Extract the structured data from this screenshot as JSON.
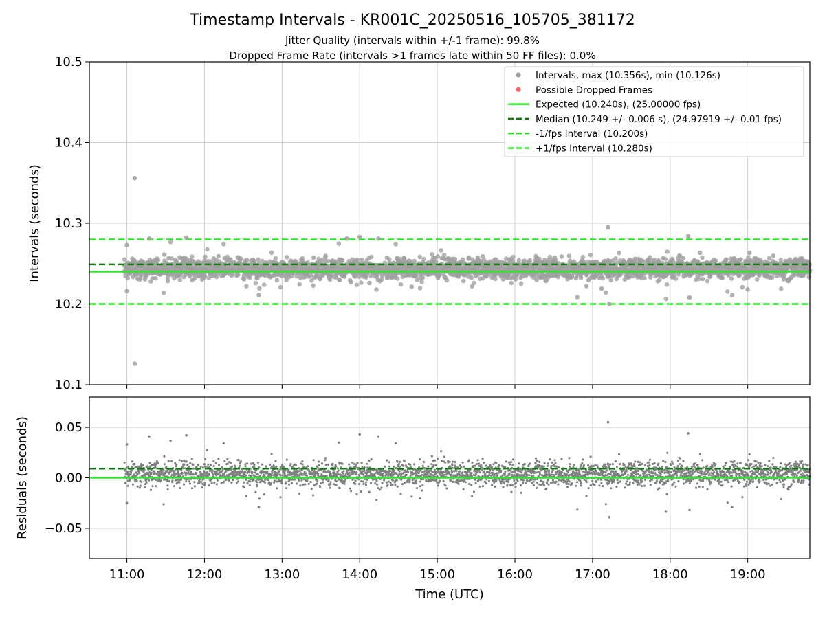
{
  "figure": {
    "title": "Timestamp Intervals - KR001C_20250516_105705_381172",
    "subtitle_line1": "Jitter Quality (intervals within +/-1 frame): 99.8%",
    "subtitle_line2": "Dropped Frame Rate (intervals >1 frames late within 50 FF files): 0.0%"
  },
  "colors": {
    "points": "#808080",
    "dropped": "#ff4444",
    "expected": "#22ee22",
    "median": "#117711",
    "bounds": "#22ee22",
    "grid": "#cccccc"
  },
  "chart_data": [
    {
      "type": "scatter",
      "ylabel": "Intervals (seconds)",
      "xlabel": "",
      "xlim": [
        "10:31",
        "19:48"
      ],
      "ylim": [
        10.1,
        10.5
      ],
      "yticks": [
        10.1,
        10.2,
        10.3,
        10.4,
        10.5
      ],
      "ytick_labels": [
        "10.1",
        "10.2",
        "10.3",
        "10.4",
        "10.5"
      ],
      "grid": true,
      "legend_position": "top-right",
      "legend": [
        {
          "label": "Intervals, max (10.356s), min (10.126s)",
          "kind": "marker",
          "color": "#a0a0a0"
        },
        {
          "label": "Possible Dropped Frames",
          "kind": "marker",
          "color": "#ff6060"
        },
        {
          "label": "Expected (10.240s), (25.00000 fps)",
          "kind": "solid",
          "color": "#22ee22"
        },
        {
          "label": "Median (10.249 +/- 0.006 s), (24.97919 +/- 0.01 fps)",
          "kind": "dashed",
          "color": "#117711"
        },
        {
          "label": "-1/fps Interval (10.200s)",
          "kind": "dashed",
          "color": "#22ee22"
        },
        {
          "label": "+1/fps Interval (10.280s)",
          "kind": "dashed",
          "color": "#22ee22"
        }
      ],
      "reference_lines": {
        "expected": 10.24,
        "median": 10.249,
        "lower": 10.2,
        "upper": 10.28
      },
      "series": [
        {
          "name": "Intervals, max (10.356s), min (10.126s)",
          "x_range": [
            "10:58",
            "19:48"
          ],
          "approx_count": 3100,
          "baseline": 10.244,
          "spread": 0.006,
          "max": 10.356,
          "min": 10.126
        },
        {
          "name": "Possible Dropped Frames",
          "x": [],
          "y": []
        }
      ],
      "notable_points": [
        {
          "x": "11:00",
          "y": 10.273
        },
        {
          "x": "11:00",
          "y": 10.216
        },
        {
          "x": "11:06",
          "y": 10.356
        },
        {
          "x": "11:06",
          "y": 10.126
        },
        {
          "x": "11:46",
          "y": 10.282
        },
        {
          "x": "12:42",
          "y": 10.211
        },
        {
          "x": "13:50",
          "y": 10.281
        },
        {
          "x": "14:00",
          "y": 10.283
        },
        {
          "x": "17:07",
          "y": 10.219
        },
        {
          "x": "17:12",
          "y": 10.295
        },
        {
          "x": "17:13",
          "y": 10.2
        },
        {
          "x": "18:14",
          "y": 10.284
        },
        {
          "x": "18:15",
          "y": 10.208
        },
        {
          "x": "19:00",
          "y": 10.218
        }
      ]
    },
    {
      "type": "scatter",
      "ylabel": "Residuals (seconds)",
      "xlabel": "Time (UTC)",
      "xlim": [
        "10:31",
        "19:48"
      ],
      "ylim": [
        -0.08,
        0.08
      ],
      "yticks": [
        -0.05,
        0.0,
        0.05
      ],
      "ytick_labels": [
        "−0.05",
        "0.00",
        "0.05"
      ],
      "xticks": [
        "11:00",
        "12:00",
        "13:00",
        "14:00",
        "15:00",
        "16:00",
        "17:00",
        "18:00",
        "19:00"
      ],
      "grid": true,
      "reference_lines": {
        "expected": 0.0,
        "median": 0.009
      },
      "series": [
        {
          "name": "Residuals",
          "x_range": [
            "10:58",
            "19:48"
          ],
          "approx_count": 3100,
          "baseline": 0.004,
          "spread": 0.006,
          "max": 0.055,
          "min": -0.039
        }
      ],
      "notable_points": [
        {
          "x": "11:00",
          "y": 0.033
        },
        {
          "x": "11:00",
          "y": -0.025
        },
        {
          "x": "11:46",
          "y": 0.042
        },
        {
          "x": "12:42",
          "y": -0.029
        },
        {
          "x": "14:00",
          "y": 0.043
        },
        {
          "x": "17:12",
          "y": 0.055
        },
        {
          "x": "17:13",
          "y": -0.039
        },
        {
          "x": "18:14",
          "y": 0.044
        },
        {
          "x": "18:15",
          "y": -0.032
        }
      ]
    }
  ]
}
